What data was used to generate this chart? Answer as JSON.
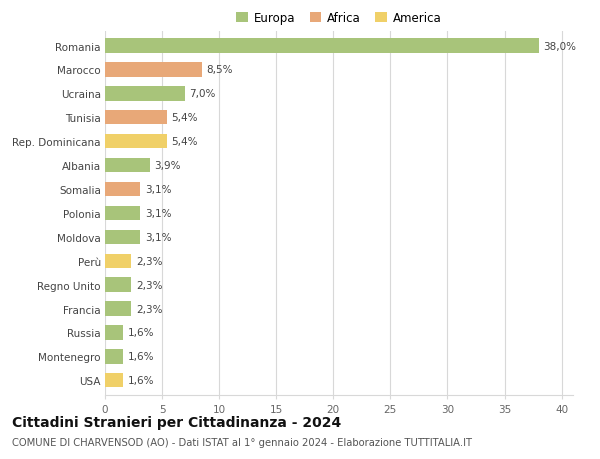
{
  "categories": [
    "Romania",
    "Marocco",
    "Ucraina",
    "Tunisia",
    "Rep. Dominicana",
    "Albania",
    "Somalia",
    "Polonia",
    "Moldova",
    "Perù",
    "Regno Unito",
    "Francia",
    "Russia",
    "Montenegro",
    "USA"
  ],
  "values": [
    38.0,
    8.5,
    7.0,
    5.4,
    5.4,
    3.9,
    3.1,
    3.1,
    3.1,
    2.3,
    2.3,
    2.3,
    1.6,
    1.6,
    1.6
  ],
  "labels": [
    "38,0%",
    "8,5%",
    "7,0%",
    "5,4%",
    "5,4%",
    "3,9%",
    "3,1%",
    "3,1%",
    "3,1%",
    "2,3%",
    "2,3%",
    "2,3%",
    "1,6%",
    "1,6%",
    "1,6%"
  ],
  "continents": [
    "Europa",
    "Africa",
    "Europa",
    "Africa",
    "America",
    "Europa",
    "Africa",
    "Europa",
    "Europa",
    "America",
    "Europa",
    "Europa",
    "Europa",
    "Europa",
    "America"
  ],
  "colors": {
    "Europa": "#a8c47a",
    "Africa": "#e8a878",
    "America": "#f0d068"
  },
  "title": "Cittadini Stranieri per Cittadinanza - 2024",
  "subtitle": "COMUNE DI CHARVENSOD (AO) - Dati ISTAT al 1° gennaio 2024 - Elaborazione TUTTITALIA.IT",
  "xlim": [
    0,
    41
  ],
  "xticks": [
    0,
    5,
    10,
    15,
    20,
    25,
    30,
    35,
    40
  ],
  "background_color": "#ffffff",
  "grid_color": "#d8d8d8",
  "bar_height": 0.6,
  "label_fontsize": 7.5,
  "tick_fontsize": 7.5,
  "title_fontsize": 10,
  "subtitle_fontsize": 7.2,
  "legend_fontsize": 8.5
}
